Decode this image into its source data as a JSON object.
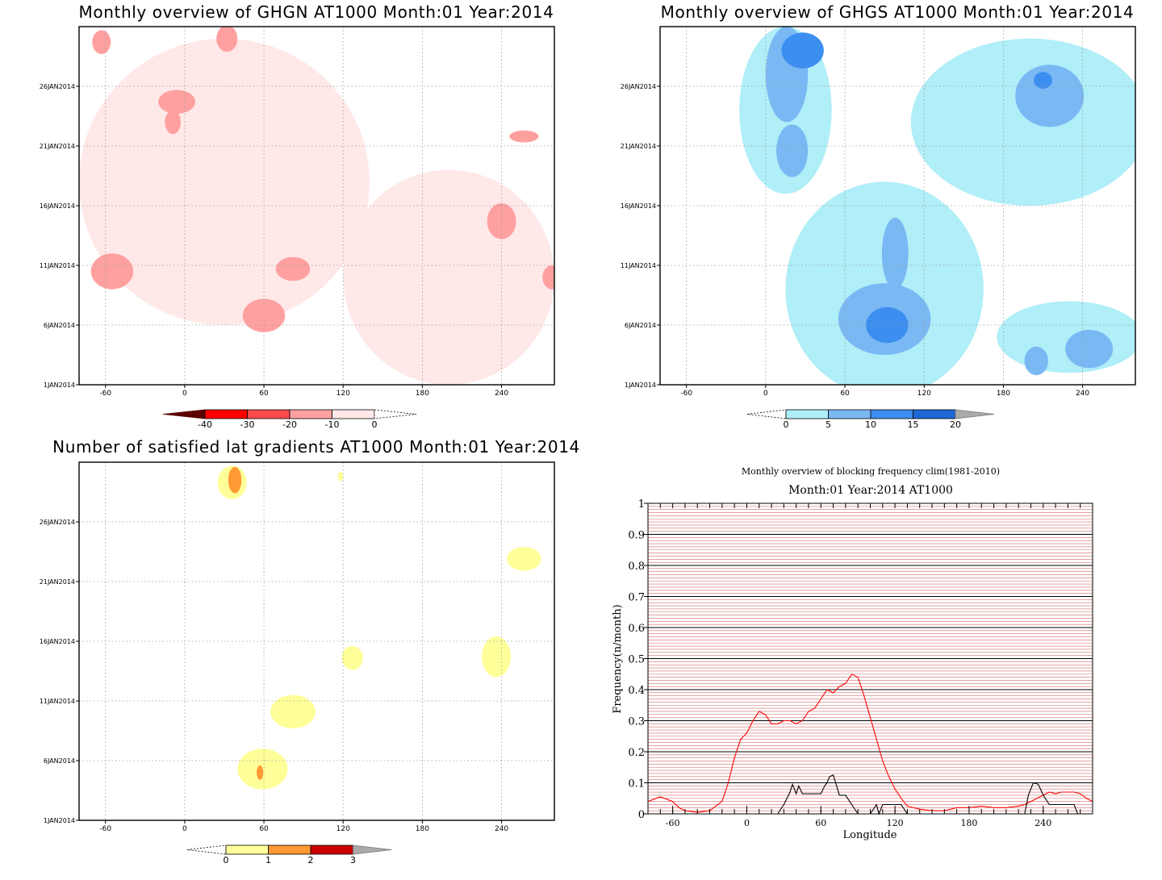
{
  "panels": {
    "ghgn": {
      "title": "Monthly overview of GHGN AT1000 Month:01 Year:2014",
      "colorbar_labels": [
        "-40",
        "-30",
        "-20",
        "-10",
        "0"
      ],
      "colors": [
        "#5a0000",
        "#ff0000",
        "#ff4a4a",
        "#ffa0a0",
        "#ffe8e8",
        "#ffffff"
      ]
    },
    "ghgs": {
      "title": "Monthly overview of GHGS AT1000 Month:01 Year:2014",
      "colorbar_labels": [
        "0",
        "5",
        "10",
        "15",
        "20"
      ],
      "colors": [
        "#ffffff",
        "#b0eef8",
        "#7ab8f4",
        "#3c8ef0",
        "#1f68d4",
        "#aaaaaa"
      ]
    },
    "lat": {
      "title": "Number of satisfied lat gradients AT1000 Month:01 Year:2014",
      "colorbar_labels": [
        "0",
        "1",
        "2",
        "3"
      ],
      "colors": [
        "#ffffff",
        "#ffff99",
        "#ff9933",
        "#cc0000",
        "#aaaaaa"
      ]
    },
    "blocking": {
      "title": "Monthly overview of blocking frequency clim(1981-2010)",
      "subtitle": "Month:01 Year:2014  AT1000"
    }
  },
  "axes": {
    "x_ticks": [
      "-60",
      "0",
      "60",
      "120",
      "180",
      "240"
    ],
    "y_ticks": [
      "1JAN2014",
      "6JAN2014",
      "11JAN2014",
      "16JAN2014",
      "21JAN2014",
      "26JAN2014"
    ]
  },
  "chart_data": [
    {
      "type": "heatmap",
      "title": "Monthly overview of GHGN AT1000 Month:01 Year:2014",
      "xlim": [
        -80,
        280
      ],
      "x_ticks": [
        -60,
        0,
        60,
        120,
        180,
        240
      ],
      "y_ticks": [
        "1JAN2014",
        "6JAN2014",
        "11JAN2014",
        "16JAN2014",
        "21JAN2014",
        "26JAN2014"
      ],
      "levels": [
        -40,
        -30,
        -20,
        -10,
        0
      ],
      "regions": [
        {
          "level": "-10..0",
          "lon": 30,
          "day": 18,
          "rlon": 110,
          "rday": 12
        },
        {
          "level": "-10..0",
          "lon": 200,
          "day": 10,
          "rlon": 80,
          "rday": 9
        },
        {
          "level": "-20..-10",
          "lon": -55,
          "day": 10.5,
          "rlon": 16,
          "rday": 1.5
        },
        {
          "level": "-20..-10",
          "lon": 60,
          "day": 6.8,
          "rlon": 16,
          "rday": 1.4
        },
        {
          "level": "-20..-10",
          "lon": 82,
          "day": 10.7,
          "rlon": 13,
          "rday": 1.0
        },
        {
          "level": "-20..-10",
          "lon": 240,
          "day": 14.7,
          "rlon": 11,
          "rday": 1.5
        },
        {
          "level": "-20..-10",
          "lon": -6,
          "day": 24.7,
          "rlon": 14,
          "rday": 1.0
        },
        {
          "level": "-20..-10",
          "lon": -9,
          "day": 23.0,
          "rlon": 6,
          "rday": 1.0
        },
        {
          "level": "-20..-10",
          "lon": 32,
          "day": 30.0,
          "rlon": 8,
          "rday": 1.1
        },
        {
          "level": "-20..-10",
          "lon": -63,
          "day": 29.7,
          "rlon": 7,
          "rday": 1.0
        },
        {
          "level": "-20..-10",
          "lon": 257,
          "day": 21.8,
          "rlon": 11,
          "rday": 0.5
        },
        {
          "level": "-20..-10",
          "lon": 278,
          "day": 10.0,
          "rlon": 7,
          "rday": 1.0
        }
      ]
    },
    {
      "type": "heatmap",
      "title": "Monthly overview of GHGS AT1000 Month:01 Year:2014",
      "xlim": [
        -80,
        280
      ],
      "x_ticks": [
        -60,
        0,
        60,
        120,
        180,
        240
      ],
      "y_ticks": [
        "1JAN2014",
        "6JAN2014",
        "11JAN2014",
        "16JAN2014",
        "21JAN2014",
        "26JAN2014"
      ],
      "levels": [
        0,
        5,
        10,
        15,
        20
      ],
      "regions": [
        {
          "level": "0..5",
          "lon": 90,
          "day": 9,
          "rlon": 75,
          "rday": 9
        },
        {
          "level": "0..5",
          "lon": 200,
          "day": 23,
          "rlon": 90,
          "rday": 7
        },
        {
          "level": "0..5",
          "lon": 15,
          "day": 24,
          "rlon": 35,
          "rday": 7
        },
        {
          "level": "0..5",
          "lon": 230,
          "day": 5,
          "rlon": 55,
          "rday": 3
        },
        {
          "level": "5..10",
          "lon": 90,
          "day": 6.5,
          "rlon": 35,
          "rday": 3
        },
        {
          "level": "5..10",
          "lon": 98,
          "day": 12.0,
          "rlon": 10,
          "rday": 3
        },
        {
          "level": "5..10",
          "lon": 16,
          "day": 27.0,
          "rlon": 16,
          "rday": 4
        },
        {
          "level": "5..10",
          "lon": 20,
          "day": 20.6,
          "rlon": 12,
          "rday": 2.2
        },
        {
          "level": "5..10",
          "lon": 215,
          "day": 25.2,
          "rlon": 26,
          "rday": 2.6
        },
        {
          "level": "5..10",
          "lon": 245,
          "day": 4.0,
          "rlon": 18,
          "rday": 1.6
        },
        {
          "level": "5..10",
          "lon": 205,
          "day": 3.0,
          "rlon": 9,
          "rday": 1.2
        },
        {
          "level": "10..15",
          "lon": 92,
          "day": 6.0,
          "rlon": 16,
          "rday": 1.5
        },
        {
          "level": "10..15",
          "lon": 28,
          "day": 29.0,
          "rlon": 16,
          "rday": 1.5
        },
        {
          "level": "10..15",
          "lon": 210,
          "day": 26.5,
          "rlon": 7,
          "rday": 0.7
        }
      ]
    },
    {
      "type": "heatmap",
      "title": "Number of satisfied lat gradients AT1000 Month:01 Year:2014",
      "xlim": [
        -80,
        280
      ],
      "x_ticks": [
        -60,
        0,
        60,
        120,
        180,
        240
      ],
      "y_ticks": [
        "1JAN2014",
        "6JAN2014",
        "11JAN2014",
        "16JAN2014",
        "21JAN2014",
        "26JAN2014"
      ],
      "levels": [
        0,
        1,
        2,
        3
      ],
      "regions": [
        {
          "level": "0..1",
          "lon": 36,
          "day": 29.3,
          "rlon": 11,
          "rday": 1.4
        },
        {
          "level": "0..1",
          "lon": 118,
          "day": 29.8,
          "rlon": 2,
          "rday": 0.4
        },
        {
          "level": "0..1",
          "lon": 257,
          "day": 22.9,
          "rlon": 13,
          "rday": 1.0
        },
        {
          "level": "0..1",
          "lon": 236,
          "day": 14.7,
          "rlon": 11,
          "rday": 1.7
        },
        {
          "level": "0..1",
          "lon": 127,
          "day": 14.6,
          "rlon": 8,
          "rday": 1.0
        },
        {
          "level": "0..1",
          "lon": 82,
          "day": 10.1,
          "rlon": 17,
          "rday": 1.4
        },
        {
          "level": "0..1",
          "lon": 59,
          "day": 5.3,
          "rlon": 19,
          "rday": 1.7
        },
        {
          "level": "1..2",
          "lon": 38,
          "day": 29.5,
          "rlon": 5,
          "rday": 1.1
        },
        {
          "level": "1..2",
          "lon": 57,
          "day": 5.0,
          "rlon": 2.5,
          "rday": 0.6
        }
      ]
    },
    {
      "type": "line",
      "title": "Monthly overview of blocking frequency clim(1981-2010)",
      "subtitle": "Month:01 Year:2014  AT1000",
      "xlabel": "Longitude",
      "ylabel": "Frequency(n/month)",
      "xlim": [
        -80,
        280
      ],
      "ylim": [
        0,
        1
      ],
      "x_ticks": [
        -60,
        0,
        60,
        120,
        180,
        240
      ],
      "y_ticks": [
        0,
        0.1,
        0.2,
        0.3,
        0.4,
        0.5,
        0.6,
        0.7,
        0.8,
        0.9,
        1
      ],
      "series": [
        {
          "color": "#ff0000",
          "x": [
            -80,
            -70,
            -60,
            -55,
            -50,
            -40,
            -30,
            -20,
            -15,
            -10,
            -5,
            0,
            5,
            10,
            15,
            20,
            25,
            30,
            35,
            40,
            45,
            50,
            55,
            60,
            65,
            70,
            75,
            80,
            85,
            90,
            95,
            100,
            105,
            110,
            115,
            120,
            125,
            130,
            140,
            150,
            160,
            170,
            180,
            190,
            200,
            210,
            220,
            225,
            230,
            235,
            240,
            245,
            250,
            255,
            260,
            265,
            270,
            275,
            280
          ],
          "y": [
            0.04,
            0.055,
            0.04,
            0.02,
            0.01,
            0.005,
            0.01,
            0.04,
            0.1,
            0.18,
            0.24,
            0.26,
            0.3,
            0.33,
            0.32,
            0.29,
            0.29,
            0.3,
            0.3,
            0.29,
            0.3,
            0.33,
            0.34,
            0.37,
            0.4,
            0.39,
            0.41,
            0.42,
            0.45,
            0.44,
            0.38,
            0.31,
            0.24,
            0.17,
            0.12,
            0.08,
            0.05,
            0.025,
            0.015,
            0.01,
            0.01,
            0.02,
            0.02,
            0.025,
            0.02,
            0.02,
            0.025,
            0.03,
            0.04,
            0.05,
            0.06,
            0.07,
            0.065,
            0.07,
            0.07,
            0.07,
            0.065,
            0.05,
            0.04
          ]
        },
        {
          "color": "#000000",
          "x": [
            -80,
            25,
            30,
            35,
            37,
            40,
            42,
            45,
            50,
            55,
            60,
            63,
            65,
            67,
            70,
            72,
            75,
            80,
            85,
            90,
            95,
            100,
            105,
            107,
            110,
            112,
            115,
            120,
            125,
            130,
            200,
            225,
            228,
            232,
            236,
            240,
            245,
            250,
            255,
            260,
            265,
            268,
            270,
            280
          ],
          "y": [
            0,
            0,
            0.03,
            0.07,
            0.095,
            0.065,
            0.09,
            0.065,
            0.065,
            0.065,
            0.065,
            0.09,
            0.1,
            0.12,
            0.125,
            0.1,
            0.06,
            0.06,
            0.03,
            0,
            0,
            0,
            0.03,
            0,
            0.03,
            0.03,
            0.03,
            0.03,
            0.03,
            0,
            0,
            0,
            0.06,
            0.1,
            0.095,
            0.06,
            0.03,
            0.03,
            0.03,
            0.03,
            0.03,
            0,
            0,
            0
          ]
        }
      ]
    }
  ]
}
